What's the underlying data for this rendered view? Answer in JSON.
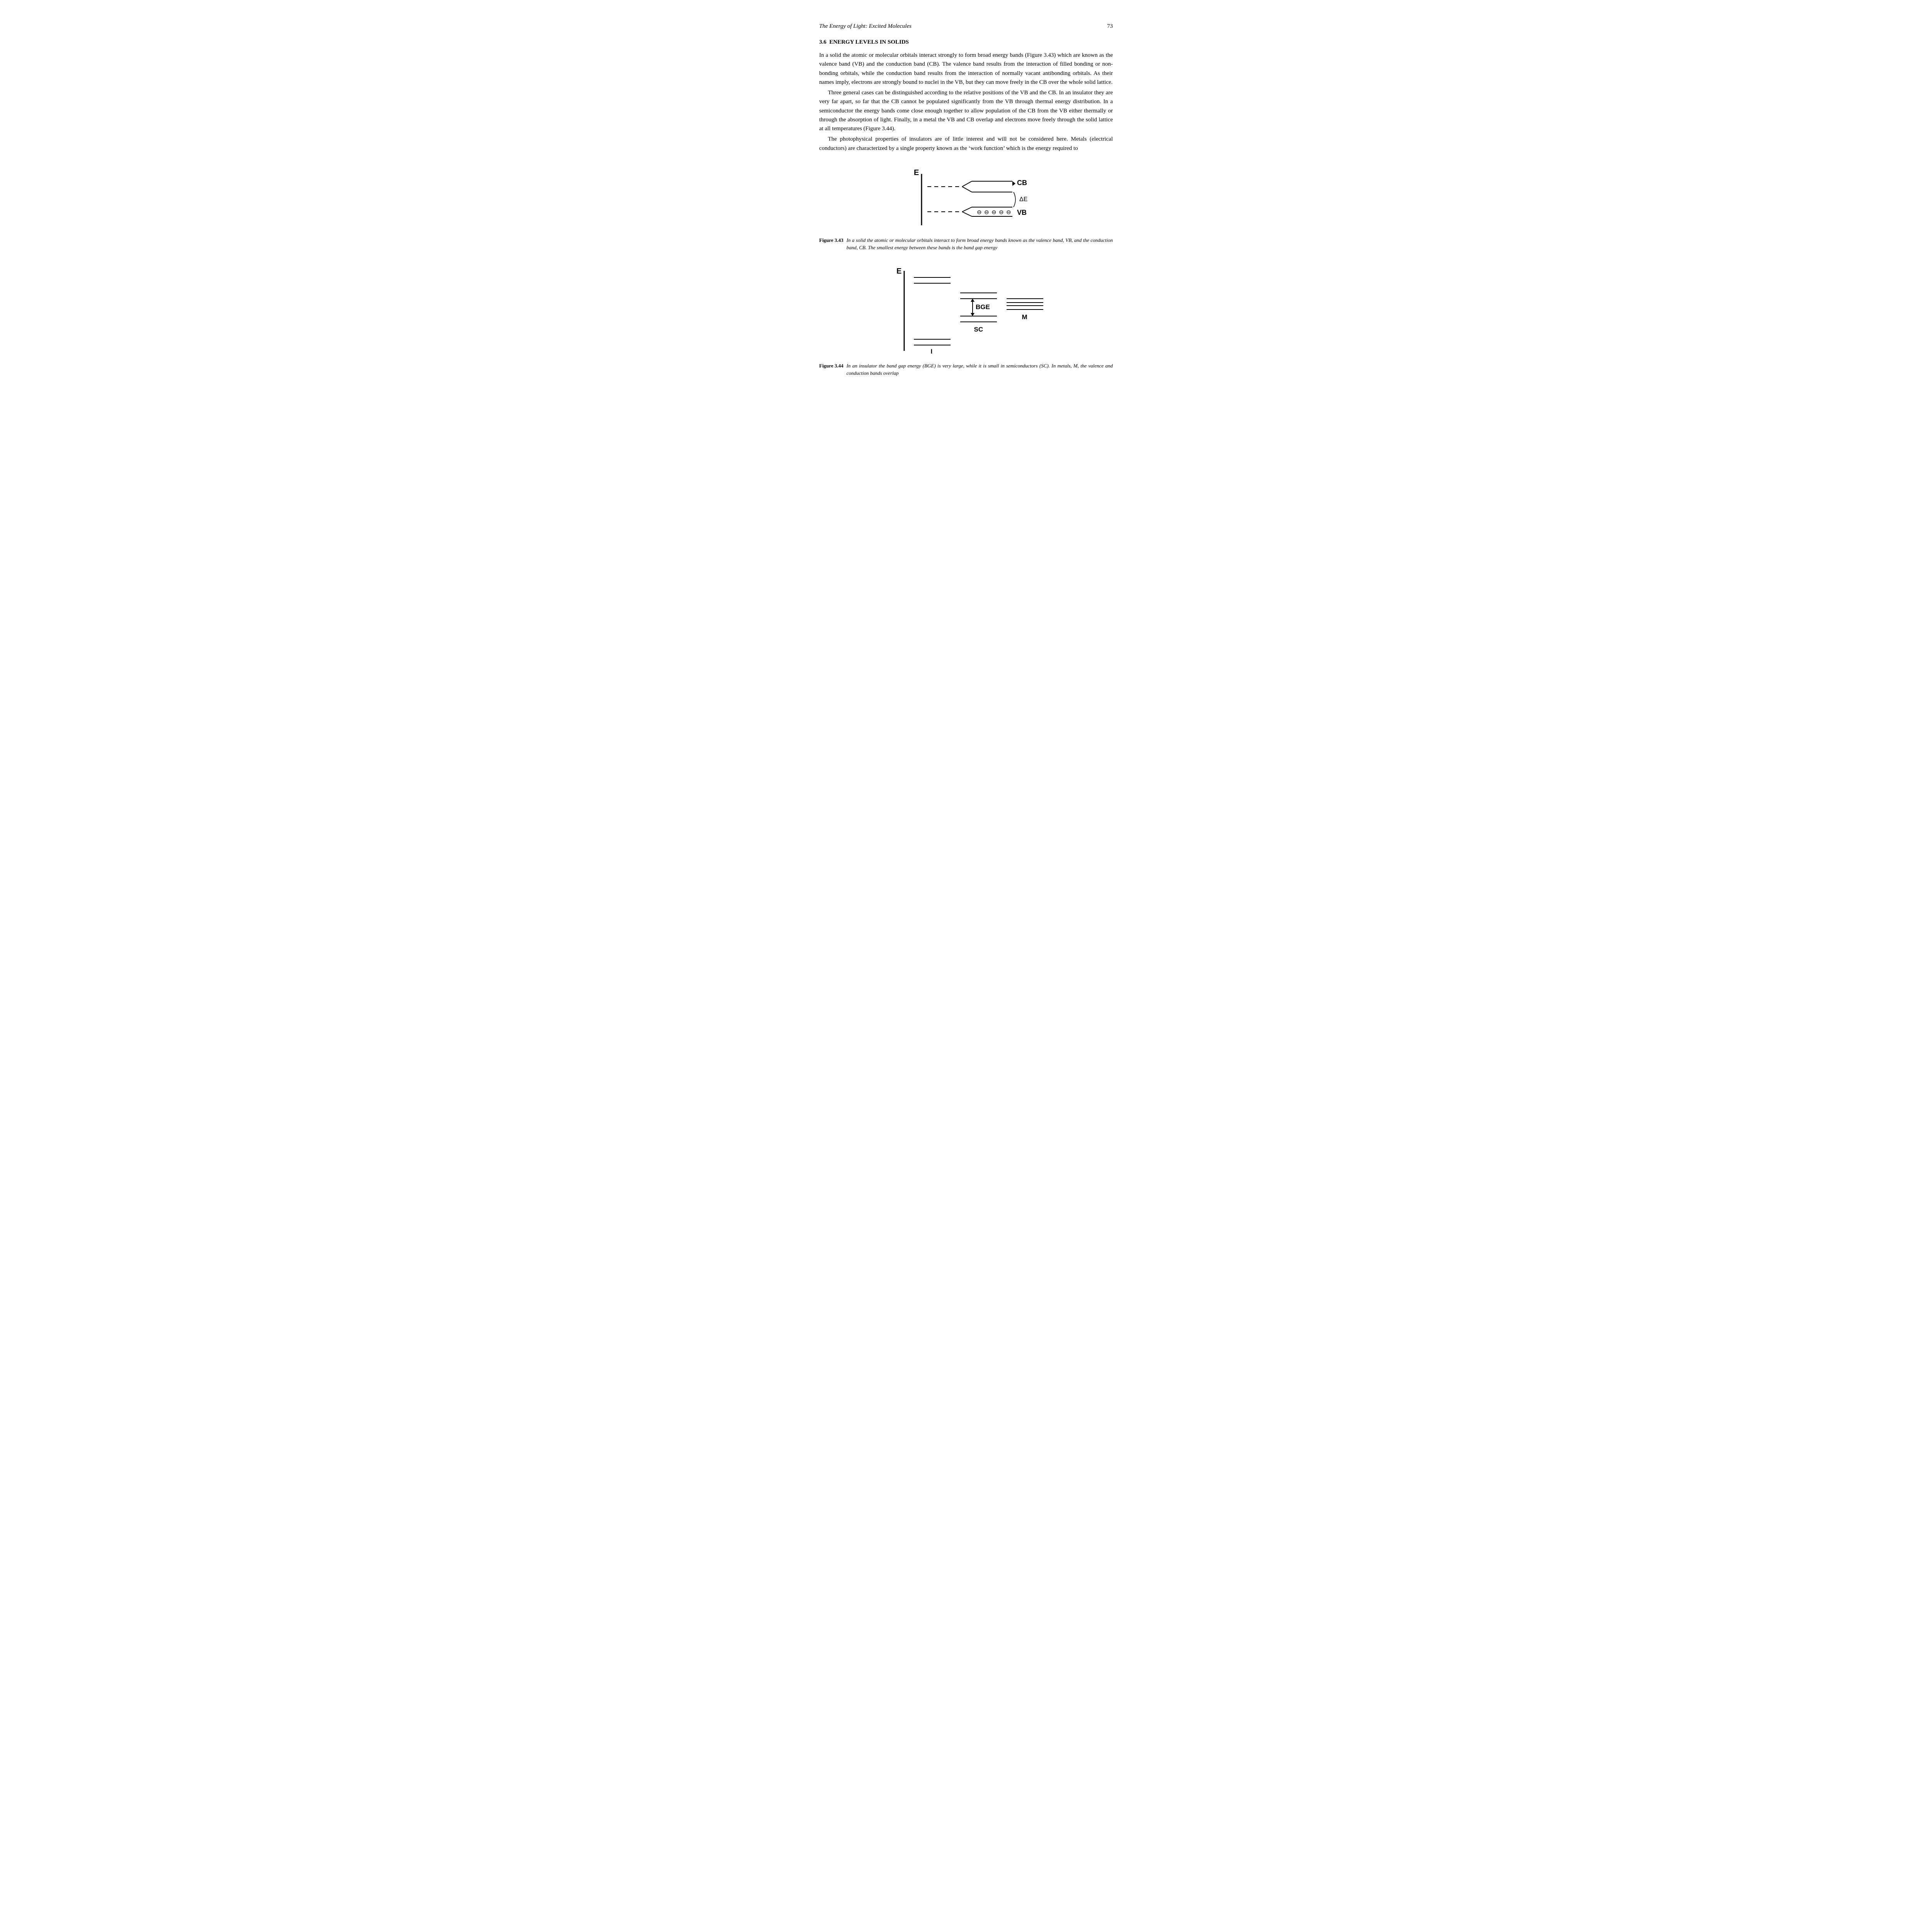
{
  "header": {
    "running_title": "The Energy of Light: Excited Molecules",
    "page_number": "73"
  },
  "section": {
    "number": "3.6",
    "title": "ENERGY LEVELS IN SOLIDS"
  },
  "paragraphs": {
    "p1": "In a solid the atomic or molecular orbitals interact strongly to form broad energy bands (Figure 3.43) which are known as the valence band (VB) and the conduction band (CB). The valence band results from the interaction of filled bonding or non-bonding orbitals, while the conduction band results from the interaction of normally vacant antibonding orbitals. As their names imply, electrons are strongly bound to nuclei in the VB, but they can move freely in the CB over the whole solid lattice.",
    "p2": "Three general cases can be distinguished according to the relative positions of the VB and the CB. In an insulator they are very far apart, so far that the CB cannot be populated significantly from the VB through thermal energy distribution. In a semiconductor the energy bands come close enough together to allow population of the CB from the VB either thermally or through the absorption of light. Finally, in a metal the VB and CB overlap and electrons move freely through the solid lattice at all temperatures (Figure 3.44).",
    "p3": "The photophysical properties of insulators are of little interest and will not be considered here. Metals (electrical conductors) are characterized by a single property known as the ‘work function’ which is the energy required to"
  },
  "figure_343": {
    "label": "Figure 3.43",
    "caption": "In a solid the atomic or molecular orbitals interact to form broad energy bands known as the valence band, VB, and the conduction band, CB. The smallest energy between these bands is the band gap energy",
    "labels": {
      "E": "E",
      "CB": "CB",
      "dE": "ΔE",
      "VB": "VB"
    },
    "style": {
      "stroke": "#000000",
      "stroke_width": 2,
      "font_family": "Arial, Helvetica, sans-serif",
      "font_weight": "bold",
      "font_size_axis": 20,
      "font_size_label": 18,
      "electron_symbol": "⊖"
    }
  },
  "figure_344": {
    "label": "Figure 3.44",
    "caption": "In an insulator the band gap energy (BGE) is very large, while it is small in semiconductors (SC). In metals, M, the valence and conduction bands overlap",
    "labels": {
      "E": "E",
      "BGE": "BGE",
      "SC": "SC",
      "I": "I",
      "M": "M"
    },
    "style": {
      "stroke": "#000000",
      "stroke_width": 2,
      "font_family": "Arial, Helvetica, sans-serif",
      "font_weight": "bold",
      "font_size_axis": 20,
      "font_size_label": 17
    }
  }
}
